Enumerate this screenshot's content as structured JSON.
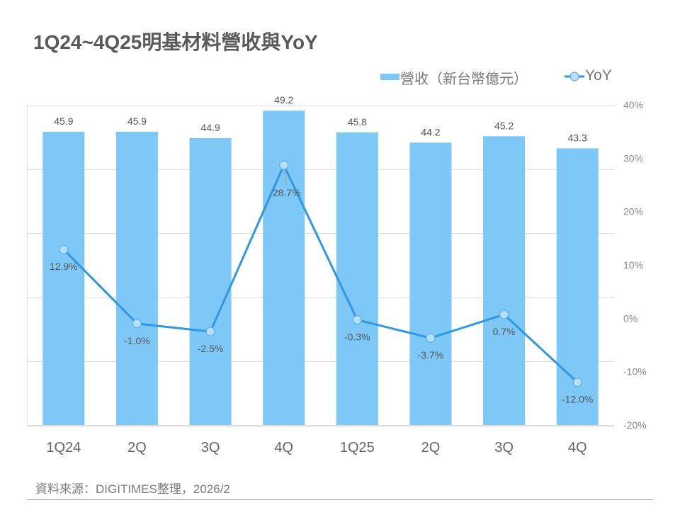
{
  "title": "1Q24~4Q25明基材料營收與YoY",
  "legend": {
    "bar_label": "營收（新台幣億元）",
    "line_label": "YoY",
    "bar_icon": "bar-swatch-icon",
    "line_icon": "line-marker-icon"
  },
  "footer": {
    "source": "資料來源：DIGITIMES整理，2026/2"
  },
  "colors": {
    "bar": "#7ec8f8",
    "line": "#2f98e4",
    "marker_fill": "#b5def8",
    "marker_stroke": "#5aaee6",
    "grid": "#dddddd",
    "axis_text": "#8a8a8a",
    "category_text": "#666666",
    "label_text": "#555555"
  },
  "chart_data": {
    "type": "bar",
    "combo": "bar+line",
    "title": "1Q24~4Q25明基材料營收與YoY",
    "xlabel": "",
    "ylabel": "",
    "categories": [
      "1Q24",
      "2Q",
      "3Q",
      "4Q",
      "1Q25",
      "2Q",
      "3Q",
      "4Q"
    ],
    "series": [
      {
        "name": "營收（新台幣億元）",
        "type": "bar",
        "axis": "left",
        "values": [
          45.9,
          45.9,
          44.9,
          49.2,
          45.8,
          44.2,
          45.2,
          43.3
        ],
        "labels": [
          "45.9",
          "45.9",
          "44.9",
          "49.2",
          "45.8",
          "44.2",
          "45.2",
          "43.3"
        ]
      },
      {
        "name": "YoY",
        "type": "line",
        "axis": "right",
        "values": [
          12.9,
          -1.0,
          -2.5,
          28.7,
          -0.3,
          -3.7,
          0.7,
          -12.0
        ],
        "labels": [
          "12.9%",
          "-1.0%",
          "-2.5%",
          "28.7%",
          "-0.3%",
          "-3.7%",
          "0.7%",
          "-12.0%"
        ]
      }
    ],
    "y_left": {
      "range": [
        0,
        50
      ],
      "ticks_visible": false,
      "gridlines": [
        0,
        10,
        20,
        30,
        40,
        50
      ]
    },
    "y_right": {
      "range": [
        -20,
        40
      ],
      "tick_values": [
        40,
        30,
        20,
        10,
        0,
        -10,
        -20
      ],
      "tick_labels": [
        "40%",
        "30%",
        "20%",
        "10%",
        "0%",
        "-10%",
        "-20%"
      ]
    },
    "grid": true,
    "legend_position": "top-right"
  }
}
